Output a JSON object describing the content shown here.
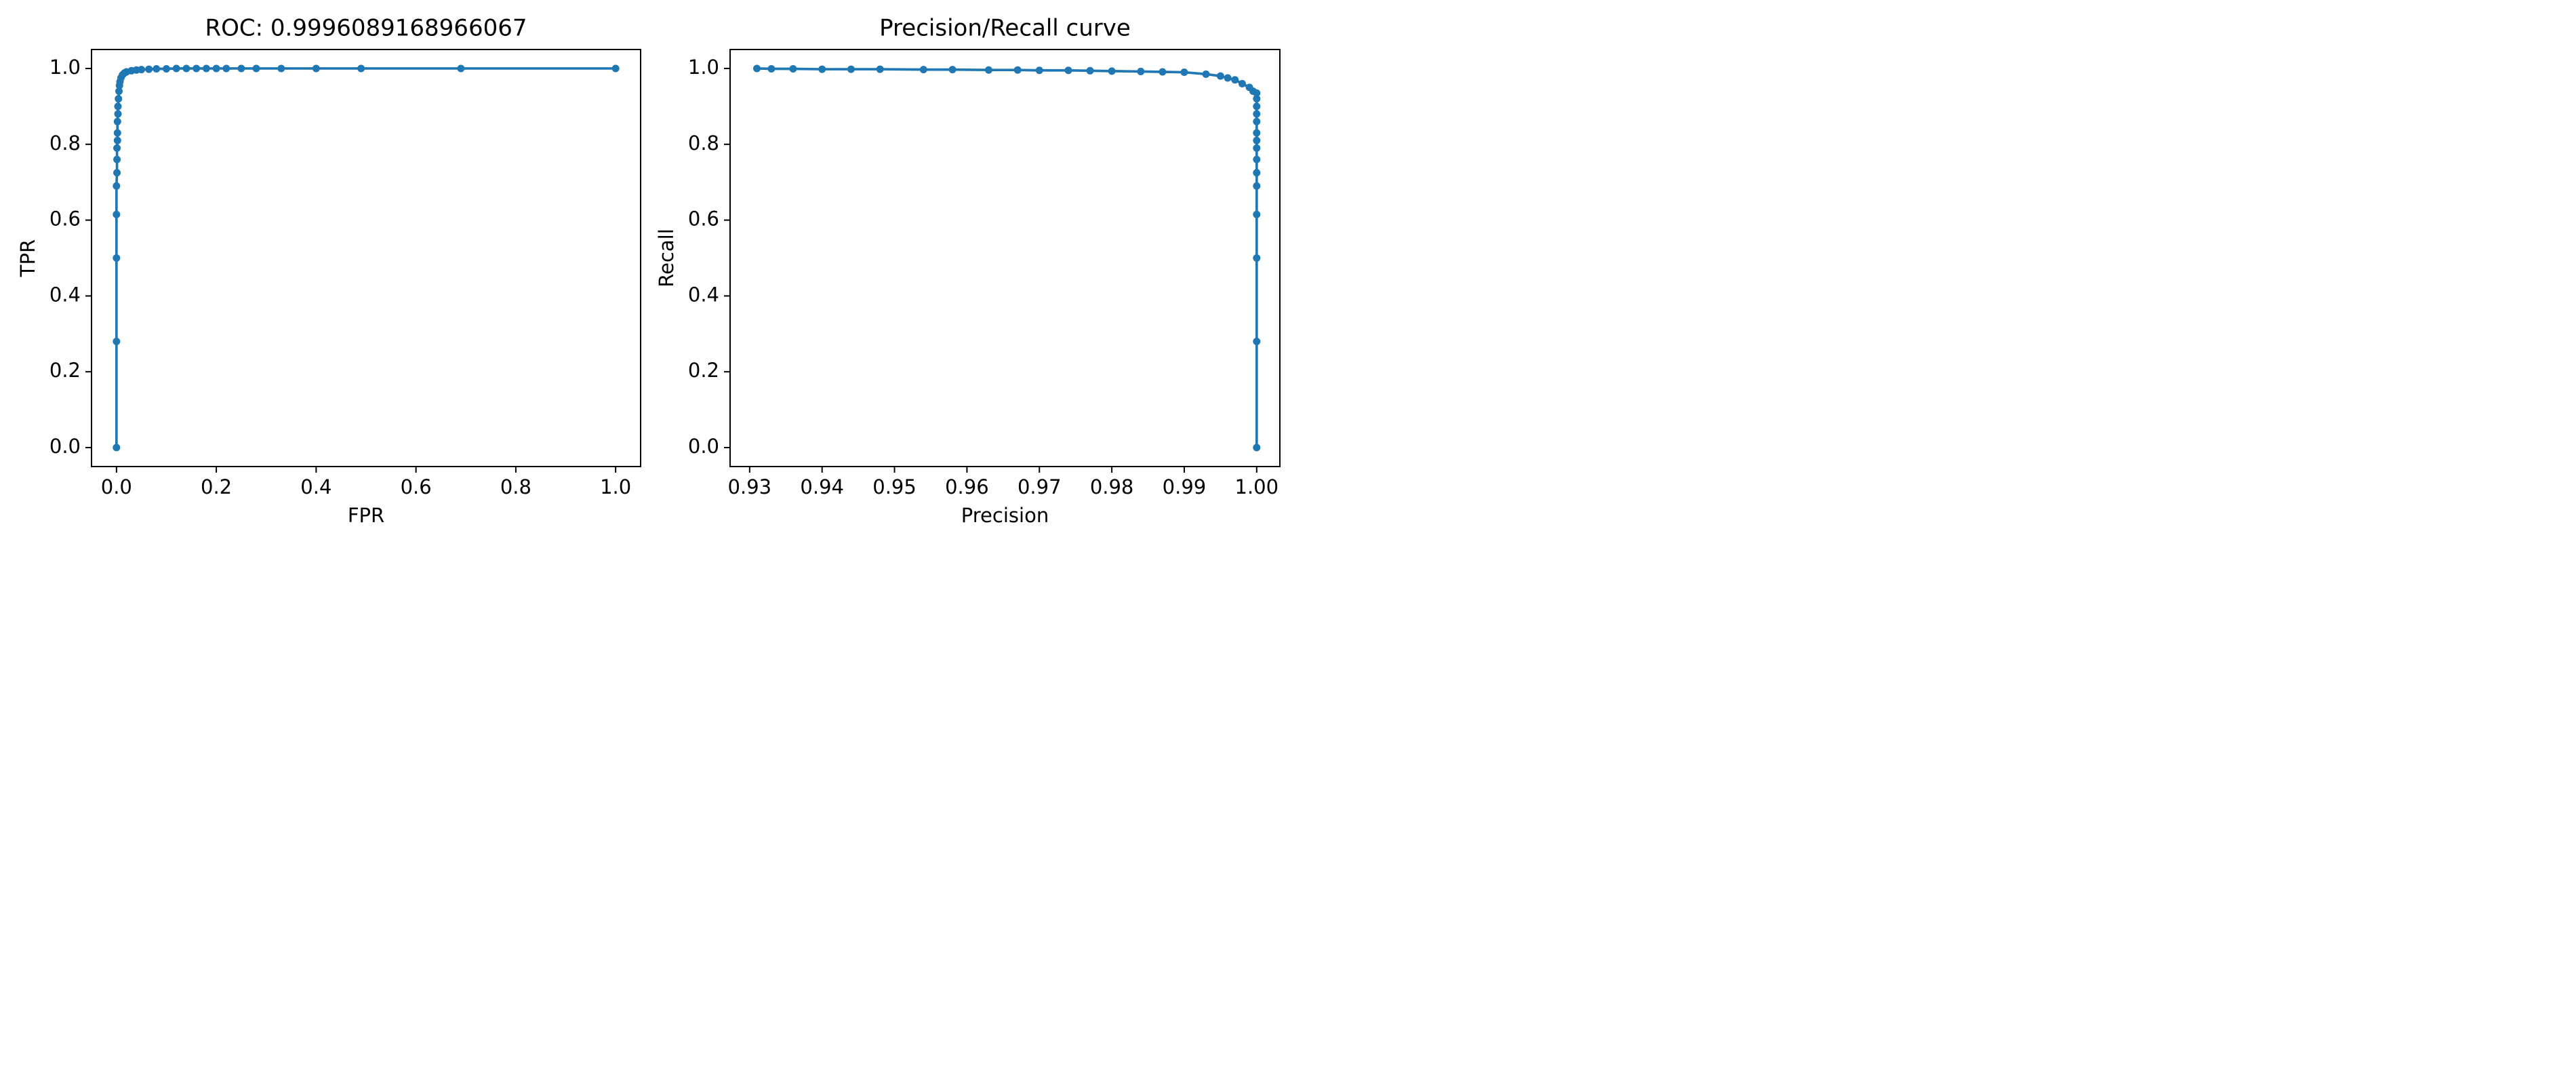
{
  "chart_data": [
    {
      "type": "line",
      "title": "ROC: 0.9996089168966067",
      "xlabel": "FPR",
      "ylabel": "TPR",
      "xlim": [
        -0.05,
        1.05
      ],
      "ylim": [
        -0.05,
        1.05
      ],
      "xticks": [
        {
          "value": 0,
          "label": "0.0"
        },
        0.2,
        0.4,
        0.6,
        0.8,
        {
          "value": 1,
          "label": "1.0"
        }
      ],
      "yticks": [
        {
          "value": 0,
          "label": "0.0"
        },
        0.2,
        0.4,
        0.6,
        0.8,
        {
          "value": 1,
          "label": "1.0"
        }
      ],
      "x": [
        0,
        0,
        0,
        0,
        0,
        0.001,
        0.001,
        0.001,
        0.002,
        0.002,
        0.002,
        0.003,
        0.003,
        0.004,
        0.005,
        0.006,
        0.007,
        0.009,
        0.012,
        0.016,
        0.02,
        0.03,
        0.04,
        0.05,
        0.065,
        0.08,
        0.1,
        0.12,
        0.14,
        0.16,
        0.18,
        0.2,
        0.22,
        0.25,
        0.28,
        0.33,
        0.4,
        0.49,
        0.69,
        1
      ],
      "series": [
        {
          "color": "#1f77b4",
          "values": [
            0,
            0.28,
            0.5,
            0.615,
            0.69,
            0.725,
            0.76,
            0.79,
            0.81,
            0.83,
            0.86,
            0.88,
            0.9,
            0.92,
            0.94,
            0.955,
            0.965,
            0.975,
            0.983,
            0.988,
            0.991,
            0.994,
            0.996,
            0.997,
            0.998,
            0.999,
            0.999,
            1,
            1,
            1,
            1,
            1,
            1,
            1,
            1,
            1,
            1,
            1,
            1,
            1
          ]
        }
      ]
    },
    {
      "type": "line",
      "title": "Precision/Recall curve",
      "xlabel": "Precision",
      "ylabel": "Recall",
      "xlim": [
        0.9273,
        1.0032
      ],
      "ylim": [
        -0.05,
        1.05
      ],
      "xticks": [
        0.93,
        0.94,
        0.95,
        0.96,
        0.97,
        0.98,
        0.99,
        {
          "value": 1,
          "label": "1.00"
        }
      ],
      "yticks": [
        {
          "value": 0,
          "label": "0.0"
        },
        0.2,
        0.4,
        0.6,
        0.8,
        {
          "value": 1,
          "label": "1.0"
        }
      ],
      "x": [
        1,
        1,
        1,
        1,
        1,
        1,
        1,
        1,
        1,
        1,
        1,
        1,
        1,
        1,
        1,
        0.9995,
        0.999,
        0.998,
        0.997,
        0.996,
        0.995,
        0.993,
        0.99,
        0.987,
        0.984,
        0.98,
        0.977,
        0.974,
        0.97,
        0.967,
        0.963,
        0.958,
        0.954,
        0.948,
        0.944,
        0.94,
        0.936,
        0.933,
        0.931
      ],
      "series": [
        {
          "color": "#1f77b4",
          "values": [
            0,
            0.28,
            0.5,
            0.615,
            0.69,
            0.725,
            0.76,
            0.79,
            0.81,
            0.83,
            0.86,
            0.88,
            0.9,
            0.92,
            0.935,
            0.94,
            0.95,
            0.96,
            0.97,
            0.975,
            0.98,
            0.985,
            0.99,
            0.991,
            0.992,
            0.993,
            0.994,
            0.995,
            0.995,
            0.996,
            0.996,
            0.997,
            0.997,
            0.998,
            0.998,
            0.998,
            0.999,
            0.999,
            1
          ]
        }
      ]
    }
  ]
}
